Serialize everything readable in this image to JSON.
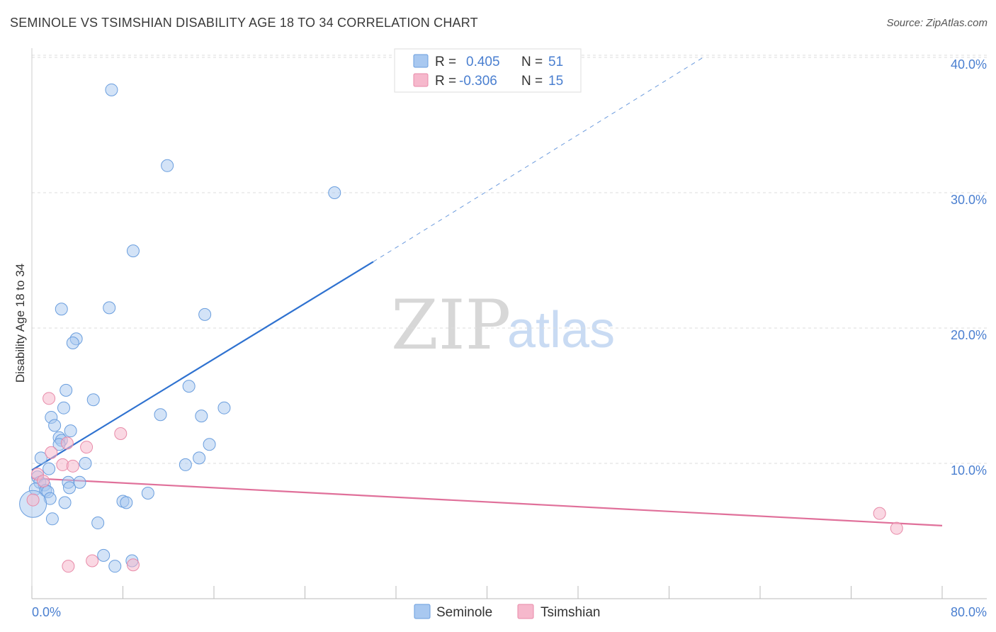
{
  "title": "SEMINOLE VS TSIMSHIAN DISABILITY AGE 18 TO 34 CORRELATION CHART",
  "source": "Source: ZipAtlas.com",
  "watermark": {
    "zip": "ZIP",
    "atlas": "atlas"
  },
  "colors": {
    "seminole_fill": "#a8c8f0",
    "seminole_stroke": "#6a9ede",
    "seminole_line": "#2f72d0",
    "tsimshian_fill": "#f6b8cc",
    "tsimshian_stroke": "#e88aa8",
    "tsimshian_line": "#e0709a",
    "tick_text": "#4a7fd0",
    "grid": "#dddddd"
  },
  "legend_top": {
    "rows": [
      {
        "r_label": "R = ",
        "r_value": "0.405",
        "n_label": "N = ",
        "n_value": "51"
      },
      {
        "r_label": "R = ",
        "r_value": "-0.306",
        "n_label": "N = ",
        "n_value": "15"
      }
    ]
  },
  "legend_bottom": [
    "Seminole",
    "Tsimshian"
  ],
  "chart_data": {
    "type": "scatter",
    "title": "SEMINOLE VS TSIMSHIAN DISABILITY AGE 18 TO 34 CORRELATION CHART",
    "xlabel": "",
    "ylabel": "Disability Age 18 to 34",
    "xlim": [
      0,
      80
    ],
    "ylim": [
      0,
      40
    ],
    "x_tick_labels": [
      "0.0%",
      "80.0%"
    ],
    "y_ticks": [
      10,
      20,
      30,
      40
    ],
    "y_tick_labels": [
      "10.0%",
      "20.0%",
      "30.0%",
      "40.0%"
    ],
    "grid": true,
    "legend_position": "top-center",
    "series": [
      {
        "name": "Seminole",
        "r": 0.405,
        "n": 51,
        "trend": {
          "x0": 0,
          "y0": 9.5,
          "x1": 30,
          "y1": 24.9,
          "dashed_to_x": 59,
          "dashed_to_y": 40
        },
        "points": [
          {
            "x": 7.0,
            "y": 37.6
          },
          {
            "x": 11.9,
            "y": 32.0
          },
          {
            "x": 26.6,
            "y": 30.0
          },
          {
            "x": 8.9,
            "y": 25.7
          },
          {
            "x": 2.6,
            "y": 21.4
          },
          {
            "x": 6.8,
            "y": 21.5
          },
          {
            "x": 15.2,
            "y": 21.0
          },
          {
            "x": 3.9,
            "y": 19.2
          },
          {
            "x": 3.6,
            "y": 18.9
          },
          {
            "x": 3.0,
            "y": 15.4
          },
          {
            "x": 13.8,
            "y": 15.7
          },
          {
            "x": 5.4,
            "y": 14.7
          },
          {
            "x": 2.8,
            "y": 14.1
          },
          {
            "x": 16.9,
            "y": 14.1
          },
          {
            "x": 11.3,
            "y": 13.6
          },
          {
            "x": 14.9,
            "y": 13.5
          },
          {
            "x": 1.7,
            "y": 13.4
          },
          {
            "x": 2.0,
            "y": 12.8
          },
          {
            "x": 3.4,
            "y": 12.4
          },
          {
            "x": 2.4,
            "y": 11.9
          },
          {
            "x": 2.6,
            "y": 11.7
          },
          {
            "x": 2.4,
            "y": 11.4
          },
          {
            "x": 15.6,
            "y": 11.4
          },
          {
            "x": 0.8,
            "y": 10.4
          },
          {
            "x": 14.7,
            "y": 10.4
          },
          {
            "x": 4.7,
            "y": 10.0
          },
          {
            "x": 13.5,
            "y": 9.9
          },
          {
            "x": 1.5,
            "y": 9.6
          },
          {
            "x": 0.5,
            "y": 9.0
          },
          {
            "x": 0.7,
            "y": 8.6
          },
          {
            "x": 1.1,
            "y": 8.4
          },
          {
            "x": 3.2,
            "y": 8.6
          },
          {
            "x": 4.2,
            "y": 8.6
          },
          {
            "x": 0.3,
            "y": 8.1
          },
          {
            "x": 1.2,
            "y": 8.0
          },
          {
            "x": 1.4,
            "y": 7.9
          },
          {
            "x": 3.3,
            "y": 8.2
          },
          {
            "x": 10.2,
            "y": 7.8
          },
          {
            "x": 1.6,
            "y": 7.4
          },
          {
            "x": 2.9,
            "y": 7.1
          },
          {
            "x": 8.0,
            "y": 7.2
          },
          {
            "x": 8.3,
            "y": 7.1
          },
          {
            "x": 0.1,
            "y": 7.0,
            "large": true
          },
          {
            "x": 1.8,
            "y": 5.9
          },
          {
            "x": 5.8,
            "y": 5.6
          },
          {
            "x": 6.3,
            "y": 3.2
          },
          {
            "x": 8.8,
            "y": 2.8
          },
          {
            "x": 7.3,
            "y": 2.4
          }
        ]
      },
      {
        "name": "Tsimshian",
        "r": -0.306,
        "n": 15,
        "trend": {
          "x0": 0,
          "y0": 8.9,
          "x1": 80,
          "y1": 5.4
        },
        "points": [
          {
            "x": 1.5,
            "y": 14.8
          },
          {
            "x": 7.8,
            "y": 12.2
          },
          {
            "x": 4.8,
            "y": 11.2
          },
          {
            "x": 3.1,
            "y": 11.5
          },
          {
            "x": 1.7,
            "y": 10.8
          },
          {
            "x": 2.7,
            "y": 9.9
          },
          {
            "x": 3.6,
            "y": 9.8
          },
          {
            "x": 0.5,
            "y": 9.2
          },
          {
            "x": 1.0,
            "y": 8.7
          },
          {
            "x": 0.1,
            "y": 7.3
          },
          {
            "x": 74.5,
            "y": 6.3
          },
          {
            "x": 76.0,
            "y": 5.2
          },
          {
            "x": 5.3,
            "y": 2.8
          },
          {
            "x": 3.2,
            "y": 2.4
          },
          {
            "x": 8.9,
            "y": 2.5
          }
        ]
      }
    ]
  }
}
